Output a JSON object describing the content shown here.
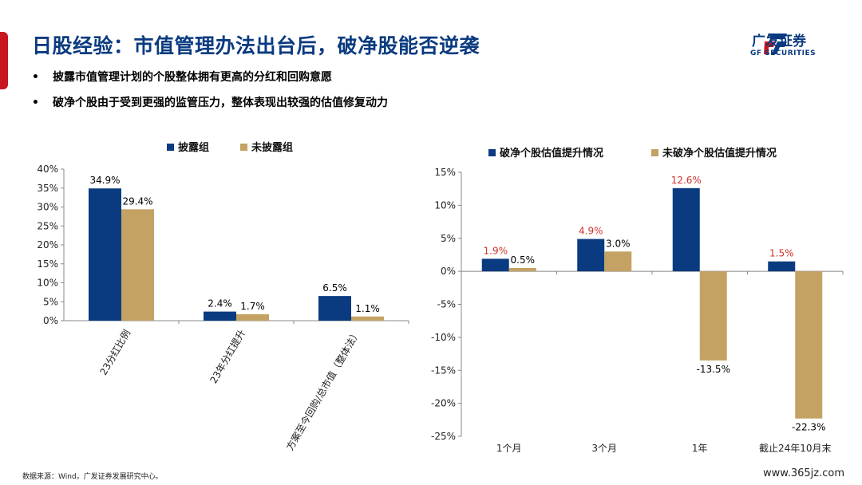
{
  "header": {
    "title": "日股经验：市值管理办法出台后，破净股能否逆袭",
    "logo_cn": "广发证券",
    "logo_en": "GF SECURITIES",
    "brand_color": "#0a3b80",
    "accent_color": "#c8171e"
  },
  "bullets": [
    "披露市值管理计划的个股整体拥有更高的分红和回购意愿",
    "破净个股由于受到更强的监管压力，整体表现出较强的估值修复动力"
  ],
  "footer": {
    "source": "数据来源：Wind，广发证券发展研究中心。",
    "watermark": "www.365jz.com"
  },
  "chart_data": [
    {
      "type": "bar",
      "categories": [
        "23分红比例",
        "23年分红提升",
        "方案至今回购/总市值（整体法）"
      ],
      "series": [
        {
          "name": "披露组",
          "values": [
            34.9,
            2.4,
            6.5
          ],
          "labels": [
            "34.9%",
            "2.4%",
            "6.5%"
          ],
          "color": "#0a3b80"
        },
        {
          "name": "未披露组",
          "values": [
            29.4,
            1.7,
            1.1
          ],
          "labels": [
            "29.4%",
            "1.7%",
            "1.1%"
          ],
          "color": "#c4a264"
        }
      ],
      "ylim": [
        0,
        40
      ],
      "yticks": [
        "0%",
        "5%",
        "10%",
        "15%",
        "20%",
        "25%",
        "30%",
        "35%",
        "40%"
      ],
      "legend": "top-center",
      "grid": false
    },
    {
      "type": "bar",
      "categories": [
        "1个月",
        "3个月",
        "1年",
        "截止24年10月末"
      ],
      "series": [
        {
          "name": "破净个股估值提升情况",
          "values": [
            1.9,
            4.9,
            12.6,
            1.5
          ],
          "labels": [
            "1.9%",
            "4.9%",
            "12.6%",
            "1.5%"
          ],
          "color": "#0a3b80",
          "label_color": "#d0312d"
        },
        {
          "name": "未破净个股估值提升情况",
          "values": [
            0.5,
            3.0,
            -13.5,
            -22.3
          ],
          "labels": [
            "0.5%",
            "3.0%",
            "-13.5%",
            "-22.3%"
          ],
          "color": "#c4a264",
          "label_color": "#000000"
        }
      ],
      "ylim": [
        -25,
        15
      ],
      "yticks": [
        "15%",
        "10%",
        "5%",
        "0%",
        "-5%",
        "-10%",
        "-15%",
        "-20%",
        "-25%"
      ],
      "legend": "top-center",
      "grid": false
    }
  ]
}
